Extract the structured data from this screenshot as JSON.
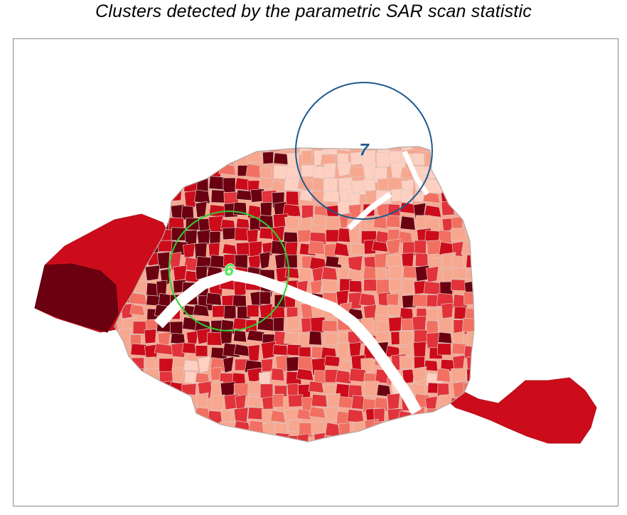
{
  "title": "Clusters detected by the parametric SAR scan statistic",
  "colors": {
    "c1": "#fdd0c2",
    "c2": "#f8a78f",
    "c3": "#f27061",
    "c4": "#e2323a",
    "c5": "#cc0c1b",
    "c6": "#6b0010",
    "river": "#ffffff",
    "tract_border": "#d9c9c4"
  },
  "clusters": [
    {
      "label": "6",
      "color": "#33cc33",
      "label_color": "#44ee55"
    },
    {
      "label": "7",
      "color": "#1f5a8f",
      "label_color": "#1f5a8f"
    }
  ]
}
